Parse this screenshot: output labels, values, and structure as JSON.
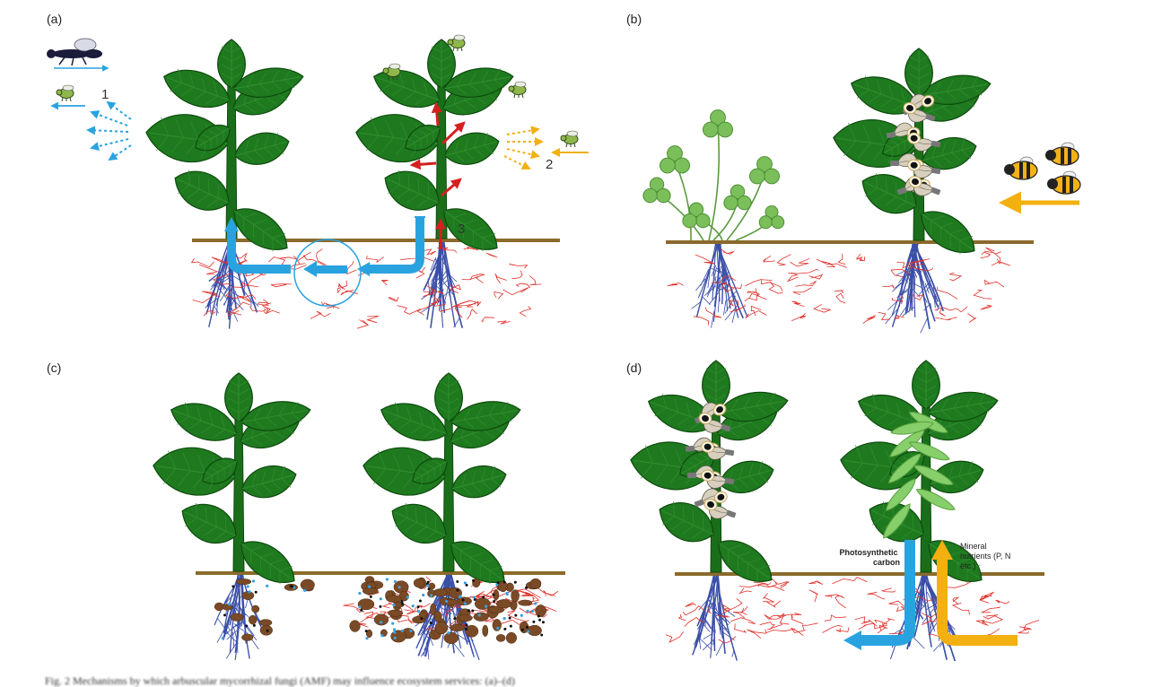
{
  "panels": {
    "a": {
      "label": "(a)",
      "markers": [
        "1",
        "2",
        "3"
      ]
    },
    "b": {
      "label": "(b)"
    },
    "c": {
      "label": "(c)"
    },
    "d": {
      "label": "(d)",
      "arrow_left_label": [
        "Photosynthetic",
        "carbon"
      ],
      "arrow_right_label": [
        "Mineral",
        "nutrients (P, N",
        "etc.)"
      ]
    }
  },
  "colors": {
    "leaf": "#1f7a1f",
    "leaf_edge": "#0e4a0e",
    "stem": "#1a6e1a",
    "soil_line": "#8b6a2b",
    "root_blue": "#3a4fa8",
    "hypha_red": "#e0302a",
    "blue_arrow": "#29a3e0",
    "red_arrow": "#d42020",
    "yellow_arrow": "#f2b011",
    "clover": "#7bbf5a",
    "pod": "#86cf6a",
    "nodule": "#7a4a26"
  },
  "caption": "Fig. 2 Mechanisms by which arbuscular mycorrhizal fungi (AMF) may influence ecosystem services: (a)–(d)"
}
